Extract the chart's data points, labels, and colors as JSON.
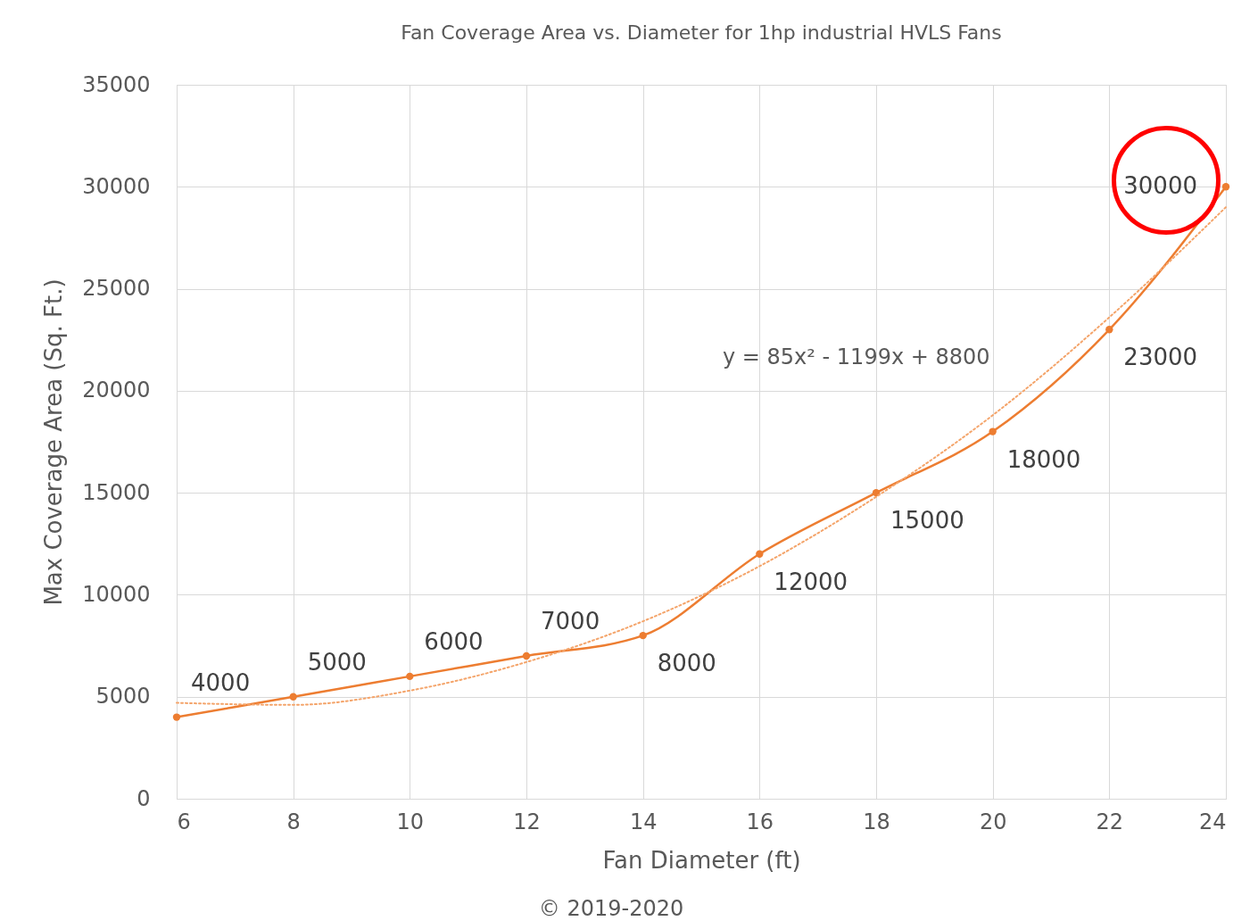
{
  "chart_data": {
    "type": "line",
    "title": "Fan Coverage Area vs. Diameter for 1hp industrial HVLS Fans",
    "xlabel": "Fan Diameter (ft)",
    "ylabel": "Max Coverage Area (Sq. Ft.)",
    "x": [
      6,
      8,
      10,
      12,
      14,
      16,
      18,
      20,
      22,
      24
    ],
    "series": [
      {
        "color": "#ed7d31",
        "marker": "circle",
        "line_style": "solid",
        "values": [
          4000,
          5000,
          6000,
          7000,
          8000,
          12000,
          15000,
          18000,
          23000,
          30000
        ],
        "value_labels": [
          "4000",
          "5000",
          "6000",
          "7000",
          "8000",
          "12000",
          "15000",
          "18000",
          "23000",
          "30000"
        ]
      },
      {
        "type": "line",
        "color": "#f4a46a",
        "marker": "none",
        "line_style": "dotted",
        "x": [
          6,
          8,
          10,
          12,
          14,
          16,
          18,
          20,
          22,
          24
        ],
        "values": [
          4700,
          4600,
          5300,
          6700,
          8700,
          11400,
          14800,
          18800,
          23600,
          29000
        ]
      }
    ],
    "xlim": [
      6,
      24
    ],
    "xticks": [
      6,
      8,
      10,
      12,
      14,
      16,
      18,
      20,
      22,
      24
    ],
    "ylim": [
      0,
      35000
    ],
    "yticks": [
      0,
      5000,
      10000,
      15000,
      20000,
      25000,
      30000,
      35000
    ],
    "grid": true,
    "annotations": [
      "y = 85x² - 1199x + 8800",
      "© 2019-2020"
    ]
  }
}
